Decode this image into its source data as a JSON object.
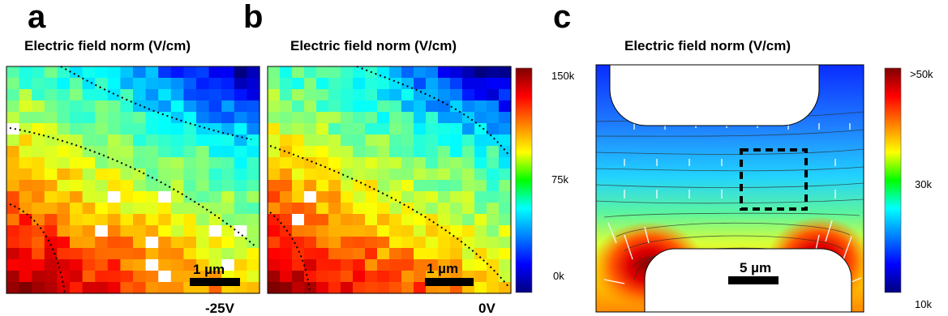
{
  "figure": {
    "panels": [
      {
        "letter": "a",
        "title": "Electric field norm (V/cm)",
        "scale_bar": "1 µm",
        "voltage": "-25V"
      },
      {
        "letter": "b",
        "title": "Electric field norm (V/cm)",
        "scale_bar": "1 µm",
        "voltage": "0V",
        "colorbar_ticks": [
          "150k",
          "75k",
          "0k"
        ]
      },
      {
        "letter": "c",
        "title": "Electric field norm (V/cm)",
        "scale_bar": "5 µm",
        "colorbar_ticks": [
          ">50k",
          "30k",
          "10k"
        ]
      }
    ],
    "colormap": "jet"
  }
}
